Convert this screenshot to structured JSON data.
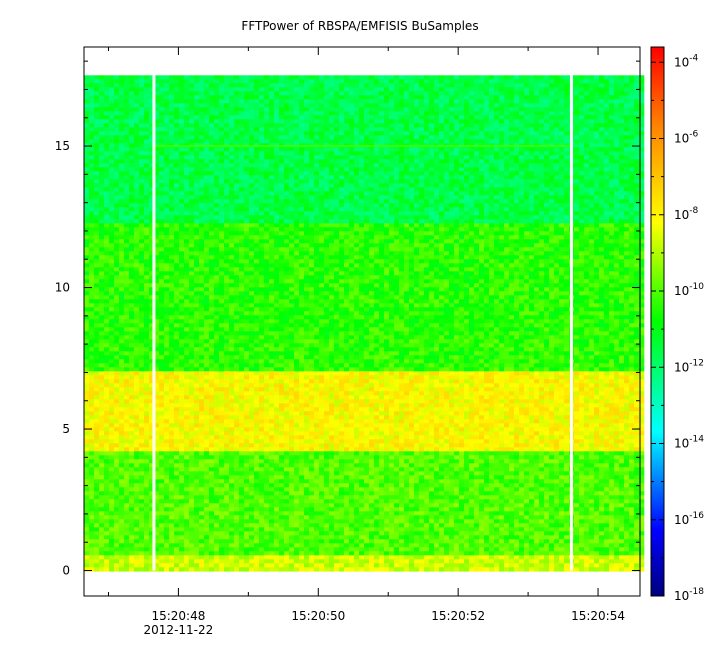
{
  "chart_data": {
    "type": "heatmap",
    "title": "FFTPower of RBSPA/EMFISIS  BuSamples",
    "xlabel": "",
    "ylabel": "",
    "x_tick_labels": [
      "15:20:48",
      "15:20:50",
      "15:20:52",
      "15:20:54"
    ],
    "x_date_label": "2012-11-22",
    "xlim_seconds": [
      46.65,
      54.6
    ],
    "ylim": [
      -0.9,
      18.5
    ],
    "y_ticks": [
      0,
      5,
      10,
      15
    ],
    "data_y_range": [
      0,
      17.5
    ],
    "gap_x_seconds": [
      47.65,
      53.62
    ],
    "colorbar": {
      "scale": "log",
      "range_exponent": [
        -18,
        -3.6
      ],
      "tick_exponents": [
        -4,
        -6,
        -8,
        -10,
        -12,
        -14,
        -16,
        -18
      ],
      "tick_base": "10"
    },
    "spectral_bands": [
      {
        "y_from": 0.0,
        "y_to": 0.6,
        "log10_power": -8.7
      },
      {
        "y_from": 0.6,
        "y_to": 4.2,
        "log10_power": -10.0
      },
      {
        "y_from": 4.2,
        "y_to": 7.0,
        "log10_power": -8.1
      },
      {
        "y_from": 7.0,
        "y_to": 12.2,
        "log10_power": -10.4
      },
      {
        "y_from": 12.2,
        "y_to": 17.5,
        "log10_power": -11.6
      }
    ],
    "line_feature": {
      "y": 15.0,
      "x_to_seconds": 53.6,
      "log10_power": -10.2
    },
    "grid": false
  }
}
